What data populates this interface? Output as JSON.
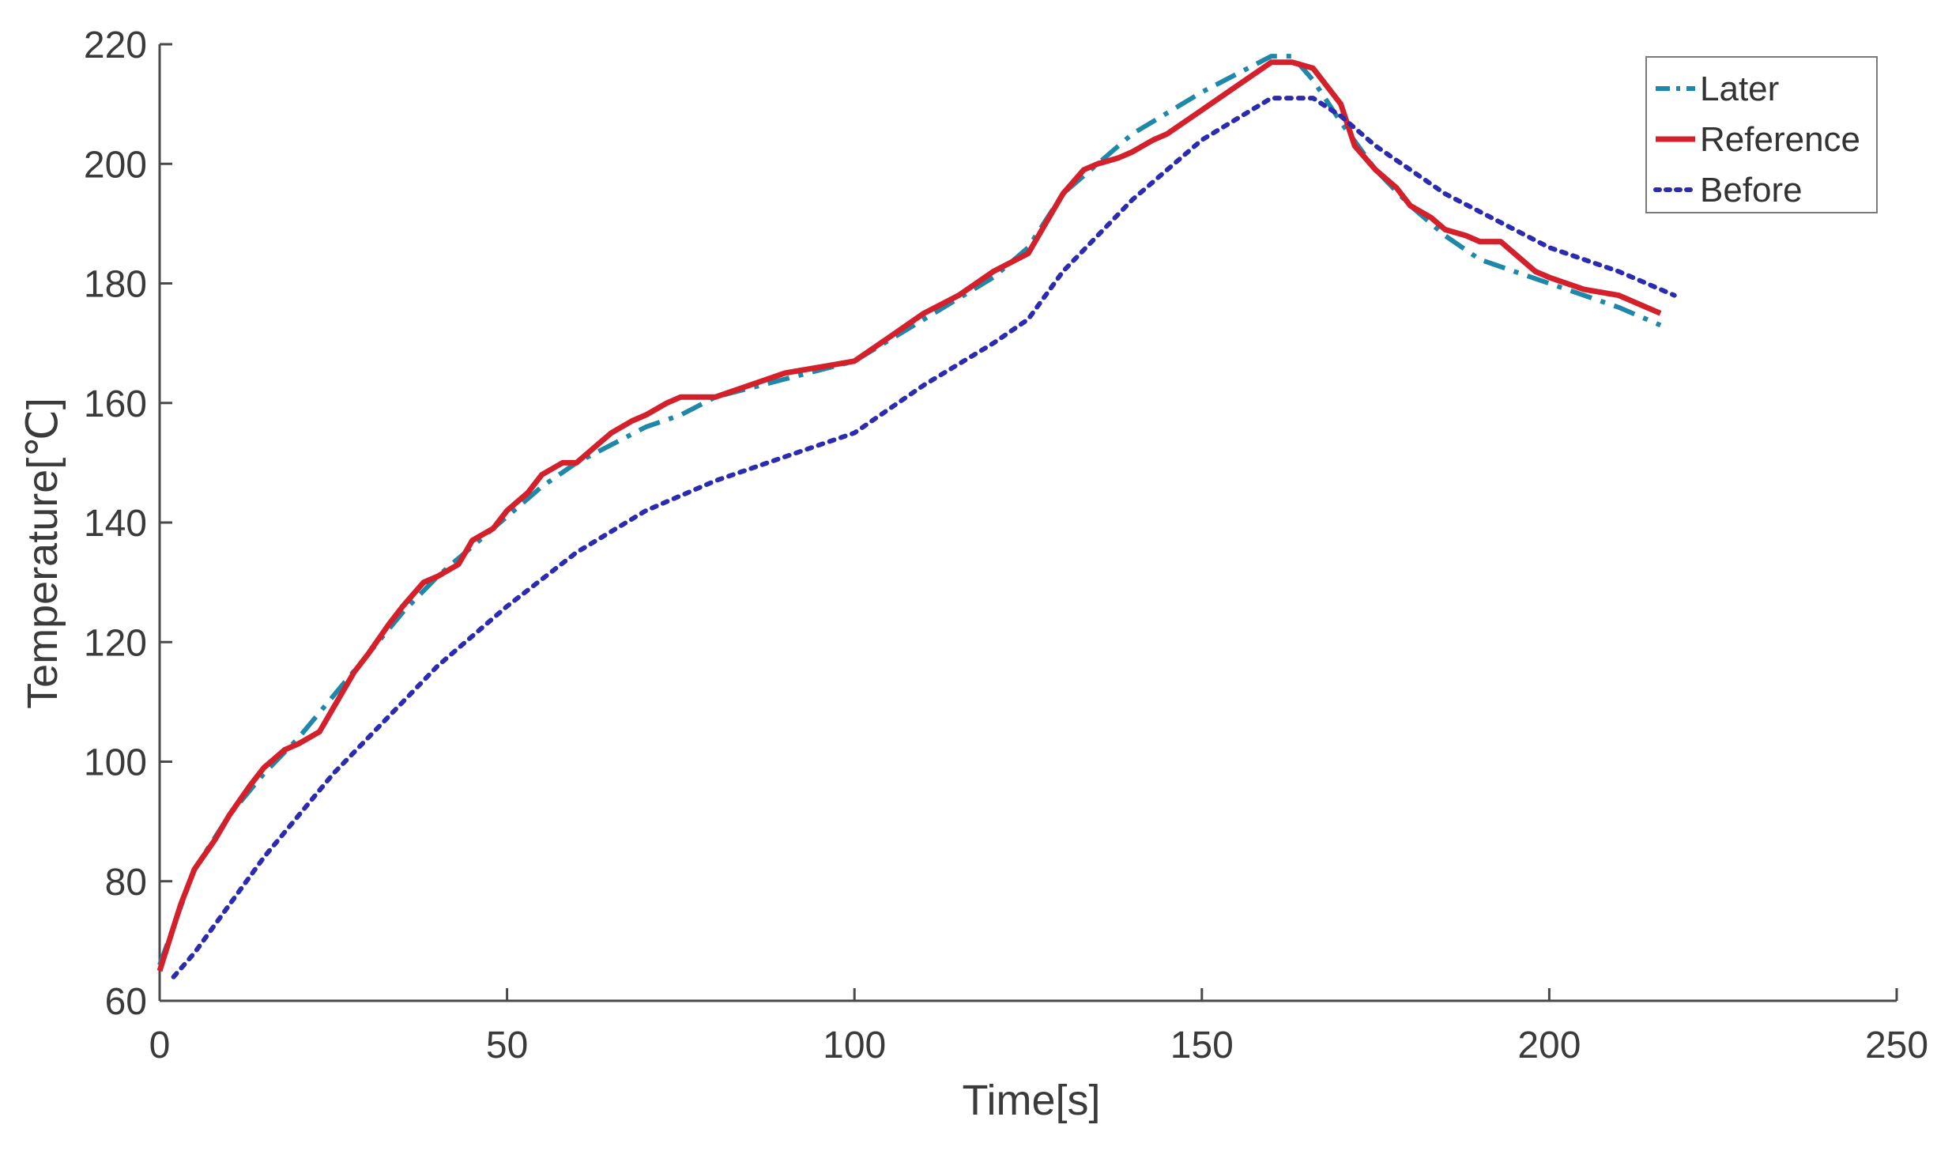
{
  "chart_data": {
    "type": "line",
    "xlabel": "Time[s]",
    "ylabel": "Temperature[℃]",
    "xlim": [
      0,
      250
    ],
    "ylim": [
      60,
      220
    ],
    "xticks": [
      0,
      50,
      100,
      150,
      200,
      250
    ],
    "yticks": [
      60,
      80,
      100,
      120,
      140,
      160,
      180,
      200,
      220
    ],
    "grid": false,
    "legend_position": "top-right",
    "series": [
      {
        "name": "Later",
        "style": "dashdot",
        "color": "#1f87a8",
        "x": [
          0,
          5,
          10,
          15,
          20,
          25,
          30,
          35,
          40,
          45,
          50,
          55,
          60,
          65,
          70,
          75,
          80,
          90,
          100,
          110,
          120,
          125,
          130,
          140,
          150,
          160,
          163,
          166,
          170,
          175,
          180,
          185,
          190,
          195,
          200,
          205,
          210,
          216
        ],
        "y": [
          66,
          82,
          91,
          98,
          104,
          111,
          118,
          125,
          131,
          136,
          141,
          146,
          150,
          153,
          156,
          158,
          161,
          164,
          167,
          174,
          181,
          186,
          195,
          205,
          212,
          218,
          218,
          214,
          207,
          199,
          193,
          188,
          184,
          182,
          180,
          178,
          176,
          173
        ]
      },
      {
        "name": "Reference",
        "style": "solid",
        "color": "#d4202a",
        "x": [
          0,
          3,
          5,
          8,
          10,
          13,
          15,
          18,
          20,
          23,
          25,
          28,
          30,
          33,
          35,
          38,
          40,
          43,
          45,
          48,
          50,
          53,
          55,
          58,
          60,
          63,
          65,
          68,
          70,
          73,
          75,
          78,
          80,
          85,
          90,
          95,
          100,
          105,
          110,
          115,
          120,
          125,
          127,
          130,
          133,
          135,
          138,
          140,
          143,
          145,
          150,
          155,
          160,
          163,
          166,
          170,
          172,
          175,
          178,
          180,
          183,
          185,
          188,
          190,
          193,
          195,
          198,
          200,
          205,
          210,
          214,
          216
        ],
        "y": [
          65,
          76,
          82,
          87,
          91,
          96,
          99,
          102,
          103,
          105,
          109,
          115,
          118,
          123,
          126,
          130,
          131,
          133,
          137,
          139,
          142,
          145,
          148,
          150,
          150,
          153,
          155,
          157,
          158,
          160,
          161,
          161,
          161,
          163,
          165,
          166,
          167,
          171,
          175,
          178,
          182,
          185,
          189,
          195,
          199,
          200,
          201,
          202,
          204,
          205,
          209,
          213,
          217,
          217,
          216,
          210,
          203,
          199,
          196,
          193,
          191,
          189,
          188,
          187,
          187,
          185,
          182,
          181,
          179,
          178,
          176,
          175
        ]
      },
      {
        "name": "Before",
        "style": "dotted",
        "color": "#2b2bb0",
        "x": [
          2,
          5,
          10,
          15,
          20,
          25,
          30,
          40,
          50,
          60,
          70,
          80,
          90,
          100,
          110,
          120,
          125,
          130,
          140,
          150,
          160,
          163,
          166,
          170,
          175,
          180,
          185,
          190,
          195,
          200,
          205,
          210,
          218
        ],
        "y": [
          64,
          68,
          76,
          84,
          91,
          98,
          104,
          116,
          126,
          135,
          142,
          147,
          151,
          155,
          163,
          170,
          174,
          182,
          194,
          204,
          211,
          211,
          211,
          208,
          203,
          199,
          195,
          192,
          189,
          186,
          184,
          182,
          178
        ]
      }
    ]
  }
}
